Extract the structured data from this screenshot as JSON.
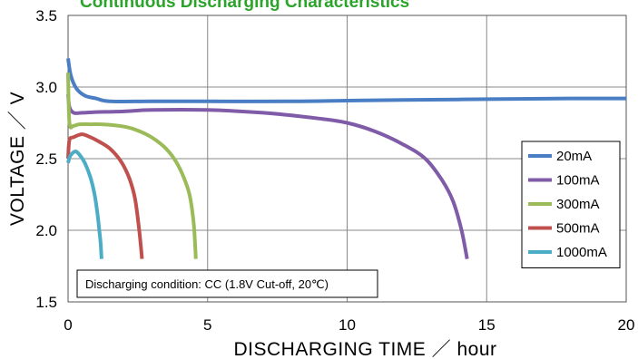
{
  "chart_data": {
    "type": "line",
    "title": "Continuous Discharging Characteristics",
    "xlabel": "DISCHARGING TIME ／ hour",
    "ylabel": "VOLTAGE ／ V",
    "xlim": [
      0,
      20
    ],
    "ylim": [
      1.5,
      3.5
    ],
    "xticks": [
      "0",
      "5",
      "10",
      "15",
      "20"
    ],
    "yticks": [
      "1.5",
      "2.0",
      "2.5",
      "3.0",
      "3.5"
    ],
    "grid": true,
    "legend_position": "right",
    "annotation": "Discharging condition: CC (1.8V Cut-off, 20℃)",
    "series": [
      {
        "name": "20mA",
        "color": "#4a7ec4",
        "x": [
          0,
          0.1,
          0.3,
          0.6,
          1.0,
          1.5,
          3,
          5,
          8,
          10,
          12,
          15,
          18,
          20
        ],
        "y": [
          3.2,
          3.08,
          2.99,
          2.94,
          2.92,
          2.9,
          2.9,
          2.9,
          2.9,
          2.905,
          2.91,
          2.915,
          2.92,
          2.92
        ]
      },
      {
        "name": "100mA",
        "color": "#7f5ba8",
        "x": [
          0,
          0.05,
          0.2,
          0.5,
          1,
          2,
          3,
          5,
          7,
          9,
          10,
          11,
          12,
          12.8,
          13.4,
          13.8,
          14.1,
          14.3
        ],
        "y": [
          2.95,
          2.86,
          2.82,
          2.82,
          2.825,
          2.83,
          2.84,
          2.84,
          2.82,
          2.78,
          2.75,
          2.69,
          2.6,
          2.5,
          2.35,
          2.2,
          2.0,
          1.8
        ]
      },
      {
        "name": "300mA",
        "color": "#9bbb59",
        "x": [
          0,
          0.05,
          0.2,
          0.4,
          0.8,
          1.2,
          1.8,
          2.3,
          2.9,
          3.4,
          3.8,
          4.1,
          4.35,
          4.5,
          4.58
        ],
        "y": [
          3.1,
          2.75,
          2.73,
          2.74,
          2.74,
          2.74,
          2.73,
          2.71,
          2.66,
          2.59,
          2.5,
          2.39,
          2.25,
          2.05,
          1.8
        ]
      },
      {
        "name": "500mA",
        "color": "#c0504d",
        "x": [
          0,
          0.05,
          0.2,
          0.5,
          0.8,
          1.1,
          1.5,
          1.9,
          2.2,
          2.4,
          2.55,
          2.65
        ],
        "y": [
          2.5,
          2.63,
          2.65,
          2.67,
          2.65,
          2.62,
          2.57,
          2.48,
          2.36,
          2.22,
          2.0,
          1.8
        ]
      },
      {
        "name": "1000mA",
        "color": "#4bacc6",
        "x": [
          0,
          0.08,
          0.25,
          0.4,
          0.6,
          0.8,
          0.95,
          1.05,
          1.12,
          1.17,
          1.2
        ],
        "y": [
          2.47,
          2.52,
          2.55,
          2.53,
          2.47,
          2.37,
          2.25,
          2.12,
          2.0,
          1.9,
          1.8
        ]
      }
    ]
  }
}
